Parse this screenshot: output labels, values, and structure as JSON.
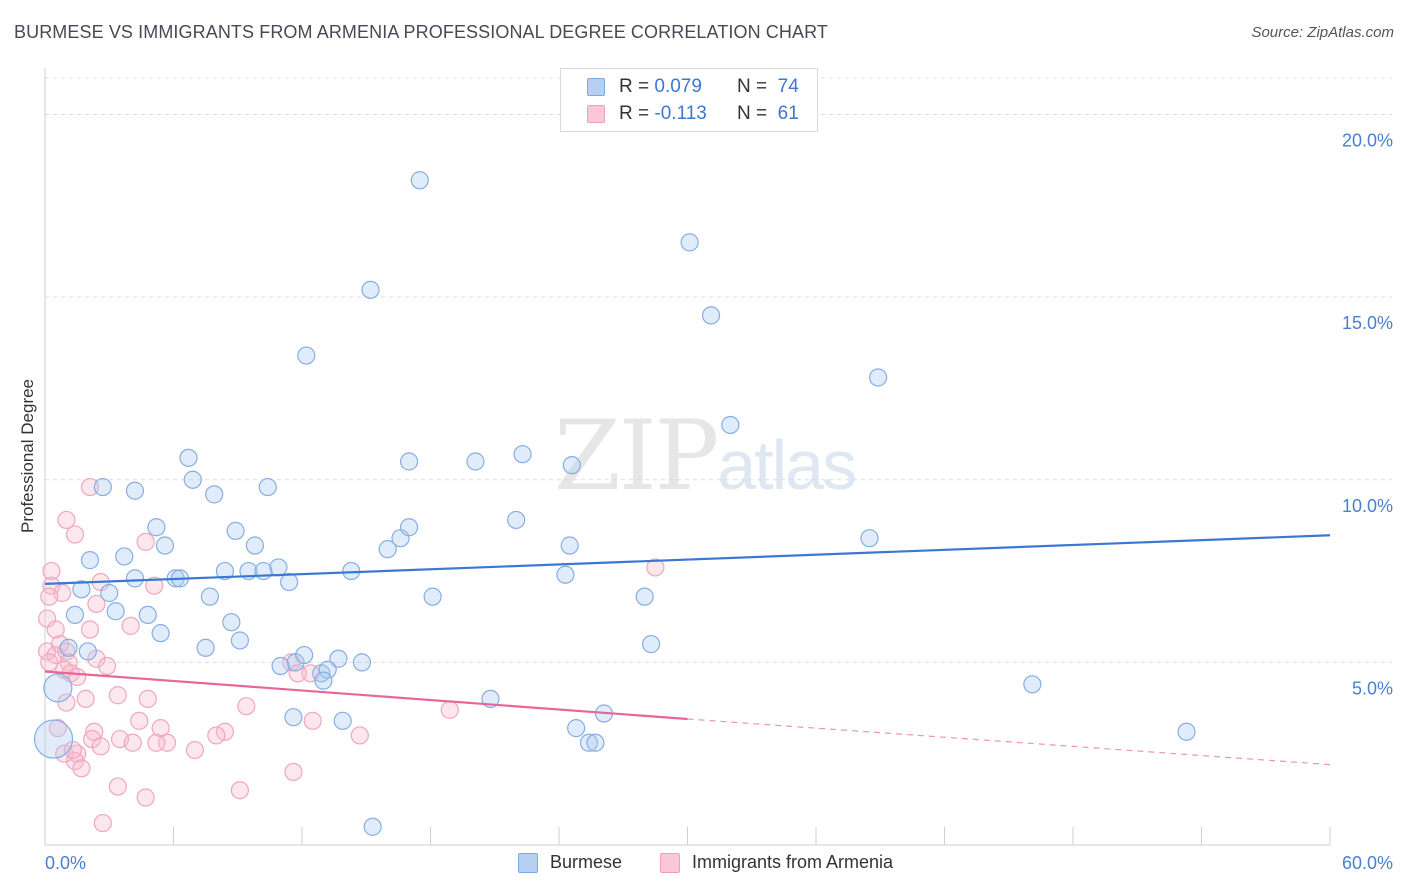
{
  "title": "BURMESE VS IMMIGRANTS FROM ARMENIA PROFESSIONAL DEGREE CORRELATION CHART",
  "source": "Source: ZipAtlas.com",
  "watermark": {
    "zip": "ZIP",
    "atlas": "atlas"
  },
  "legend": {
    "rows": [
      {
        "r_label": "R =",
        "r_value": "0.079",
        "n_label": "N =",
        "n_value": "74",
        "color": "#a8c8f0"
      },
      {
        "r_label": "R =",
        "r_value": "-0.113",
        "n_label": "N =",
        "n_value": "61",
        "color": "#f6b9cc"
      }
    ]
  },
  "bottom_legend": {
    "series1": "Burmese",
    "series2": "Immigrants from Armenia"
  },
  "chart_data": {
    "type": "scatter",
    "title": "BURMESE VS IMMIGRANTS FROM ARMENIA PROFESSIONAL DEGREE CORRELATION CHART",
    "xlabel": "",
    "ylabel": "Professional Degree",
    "xlim": [
      0,
      60
    ],
    "ylim": [
      0,
      21
    ],
    "x_tick_labels": [
      "0.0%",
      "60.0%"
    ],
    "y_ticks": [
      5,
      10,
      15,
      20
    ],
    "y_tick_labels": [
      "5.0%",
      "10.0%",
      "15.0%",
      "20.0%"
    ],
    "grid": true,
    "colors": {
      "burmese": "#3a78d4",
      "burmese_fill": "#a8c8f0",
      "armenia": "#e8659a",
      "armenia_fill": "#f6b9cc"
    },
    "series": [
      {
        "name": "Burmese",
        "r": 0.079,
        "n": 74,
        "trend": {
          "x": [
            0,
            60
          ],
          "y": [
            7.15,
            8.48
          ],
          "style": "solid"
        },
        "points": [
          [
            17.5,
            18.2
          ],
          [
            30.1,
            16.5
          ],
          [
            15.2,
            15.2
          ],
          [
            31.1,
            14.5
          ],
          [
            12.2,
            13.4
          ],
          [
            38.9,
            12.8
          ],
          [
            32.0,
            11.5
          ],
          [
            6.7,
            10.6
          ],
          [
            17.0,
            10.5
          ],
          [
            20.1,
            10.5
          ],
          [
            22.3,
            10.7
          ],
          [
            24.6,
            10.4
          ],
          [
            2.7,
            9.8
          ],
          [
            4.2,
            9.7
          ],
          [
            6.9,
            10.0
          ],
          [
            7.9,
            9.6
          ],
          [
            10.4,
            9.8
          ],
          [
            5.2,
            8.7
          ],
          [
            8.9,
            8.6
          ],
          [
            16.0,
            8.1
          ],
          [
            16.6,
            8.4
          ],
          [
            17.0,
            8.7
          ],
          [
            24.5,
            8.2
          ],
          [
            38.5,
            8.4
          ],
          [
            2.1,
            7.8
          ],
          [
            3.7,
            7.9
          ],
          [
            5.6,
            8.2
          ],
          [
            9.8,
            8.2
          ],
          [
            6.1,
            7.3
          ],
          [
            6.3,
            7.3
          ],
          [
            8.4,
            7.5
          ],
          [
            9.5,
            7.5
          ],
          [
            10.2,
            7.5
          ],
          [
            10.9,
            7.6
          ],
          [
            11.4,
            7.2
          ],
          [
            14.3,
            7.5
          ],
          [
            24.3,
            7.4
          ],
          [
            1.7,
            7.0
          ],
          [
            3.0,
            6.9
          ],
          [
            7.7,
            6.8
          ],
          [
            18.1,
            6.8
          ],
          [
            28.0,
            6.8
          ],
          [
            1.4,
            6.3
          ],
          [
            4.8,
            6.3
          ],
          [
            8.7,
            6.1
          ],
          [
            5.4,
            5.8
          ],
          [
            9.1,
            5.6
          ],
          [
            7.5,
            5.4
          ],
          [
            1.1,
            5.4
          ],
          [
            11.7,
            5.0
          ],
          [
            12.1,
            5.2
          ],
          [
            13.7,
            5.1
          ],
          [
            14.8,
            5.0
          ],
          [
            12.9,
            4.7
          ],
          [
            13.2,
            4.8
          ],
          [
            13.0,
            4.5
          ],
          [
            28.3,
            5.5
          ],
          [
            46.1,
            4.4
          ],
          [
            0.6,
            4.3
          ],
          [
            20.8,
            4.0
          ],
          [
            11.6,
            3.5
          ],
          [
            13.9,
            3.4
          ],
          [
            24.8,
            3.2
          ],
          [
            26.1,
            3.6
          ],
          [
            25.4,
            2.8
          ],
          [
            25.7,
            2.8
          ],
          [
            53.3,
            3.1
          ],
          [
            0.4,
            2.9
          ],
          [
            15.3,
            0.5
          ],
          [
            2.0,
            5.3
          ],
          [
            4.2,
            7.3
          ],
          [
            3.3,
            6.4
          ],
          [
            11.0,
            4.9
          ],
          [
            22.0,
            8.9
          ]
        ],
        "sizes": {
          "0.6,4.3": "large",
          "0.4,2.9": "xlarge"
        }
      },
      {
        "name": "Immigrants from Armenia",
        "r": -0.113,
        "n": 61,
        "trend": {
          "x": [
            0,
            30
          ],
          "y": [
            4.75,
            3.45
          ],
          "dashed_to": [
            60,
            2.2
          ],
          "style": "solid-then-dashed"
        },
        "points": [
          [
            2.1,
            9.8
          ],
          [
            1.0,
            8.9
          ],
          [
            1.4,
            8.5
          ],
          [
            4.7,
            8.3
          ],
          [
            28.5,
            7.6
          ],
          [
            0.3,
            7.5
          ],
          [
            0.3,
            7.1
          ],
          [
            5.1,
            7.1
          ],
          [
            0.8,
            6.9
          ],
          [
            0.2,
            6.8
          ],
          [
            2.6,
            7.2
          ],
          [
            2.4,
            6.6
          ],
          [
            0.1,
            6.2
          ],
          [
            0.5,
            5.9
          ],
          [
            2.1,
            5.9
          ],
          [
            4.0,
            6.0
          ],
          [
            0.1,
            5.3
          ],
          [
            0.5,
            5.2
          ],
          [
            0.7,
            5.5
          ],
          [
            1.0,
            5.3
          ],
          [
            0.2,
            5.0
          ],
          [
            1.1,
            5.0
          ],
          [
            2.4,
            5.1
          ],
          [
            2.9,
            4.9
          ],
          [
            0.9,
            4.8
          ],
          [
            1.2,
            4.7
          ],
          [
            1.5,
            4.6
          ],
          [
            11.5,
            5.0
          ],
          [
            12.4,
            4.7
          ],
          [
            11.8,
            4.7
          ],
          [
            1.0,
            3.9
          ],
          [
            1.9,
            4.0
          ],
          [
            3.4,
            4.1
          ],
          [
            4.8,
            4.0
          ],
          [
            9.4,
            3.8
          ],
          [
            18.9,
            3.7
          ],
          [
            0.6,
            3.2
          ],
          [
            2.3,
            3.1
          ],
          [
            4.4,
            3.4
          ],
          [
            5.4,
            3.2
          ],
          [
            2.2,
            2.9
          ],
          [
            3.5,
            2.9
          ],
          [
            4.1,
            2.8
          ],
          [
            5.7,
            2.8
          ],
          [
            8.4,
            3.1
          ],
          [
            12.5,
            3.4
          ],
          [
            14.7,
            3.0
          ],
          [
            1.5,
            2.5
          ],
          [
            1.4,
            2.3
          ],
          [
            1.7,
            2.1
          ],
          [
            0.9,
            2.5
          ],
          [
            7.0,
            2.6
          ],
          [
            11.6,
            2.0
          ],
          [
            3.4,
            1.6
          ],
          [
            4.7,
            1.3
          ],
          [
            9.1,
            1.5
          ],
          [
            2.7,
            0.6
          ],
          [
            8.0,
            3.0
          ],
          [
            2.6,
            2.7
          ],
          [
            5.2,
            2.8
          ],
          [
            1.3,
            2.6
          ]
        ]
      }
    ]
  }
}
